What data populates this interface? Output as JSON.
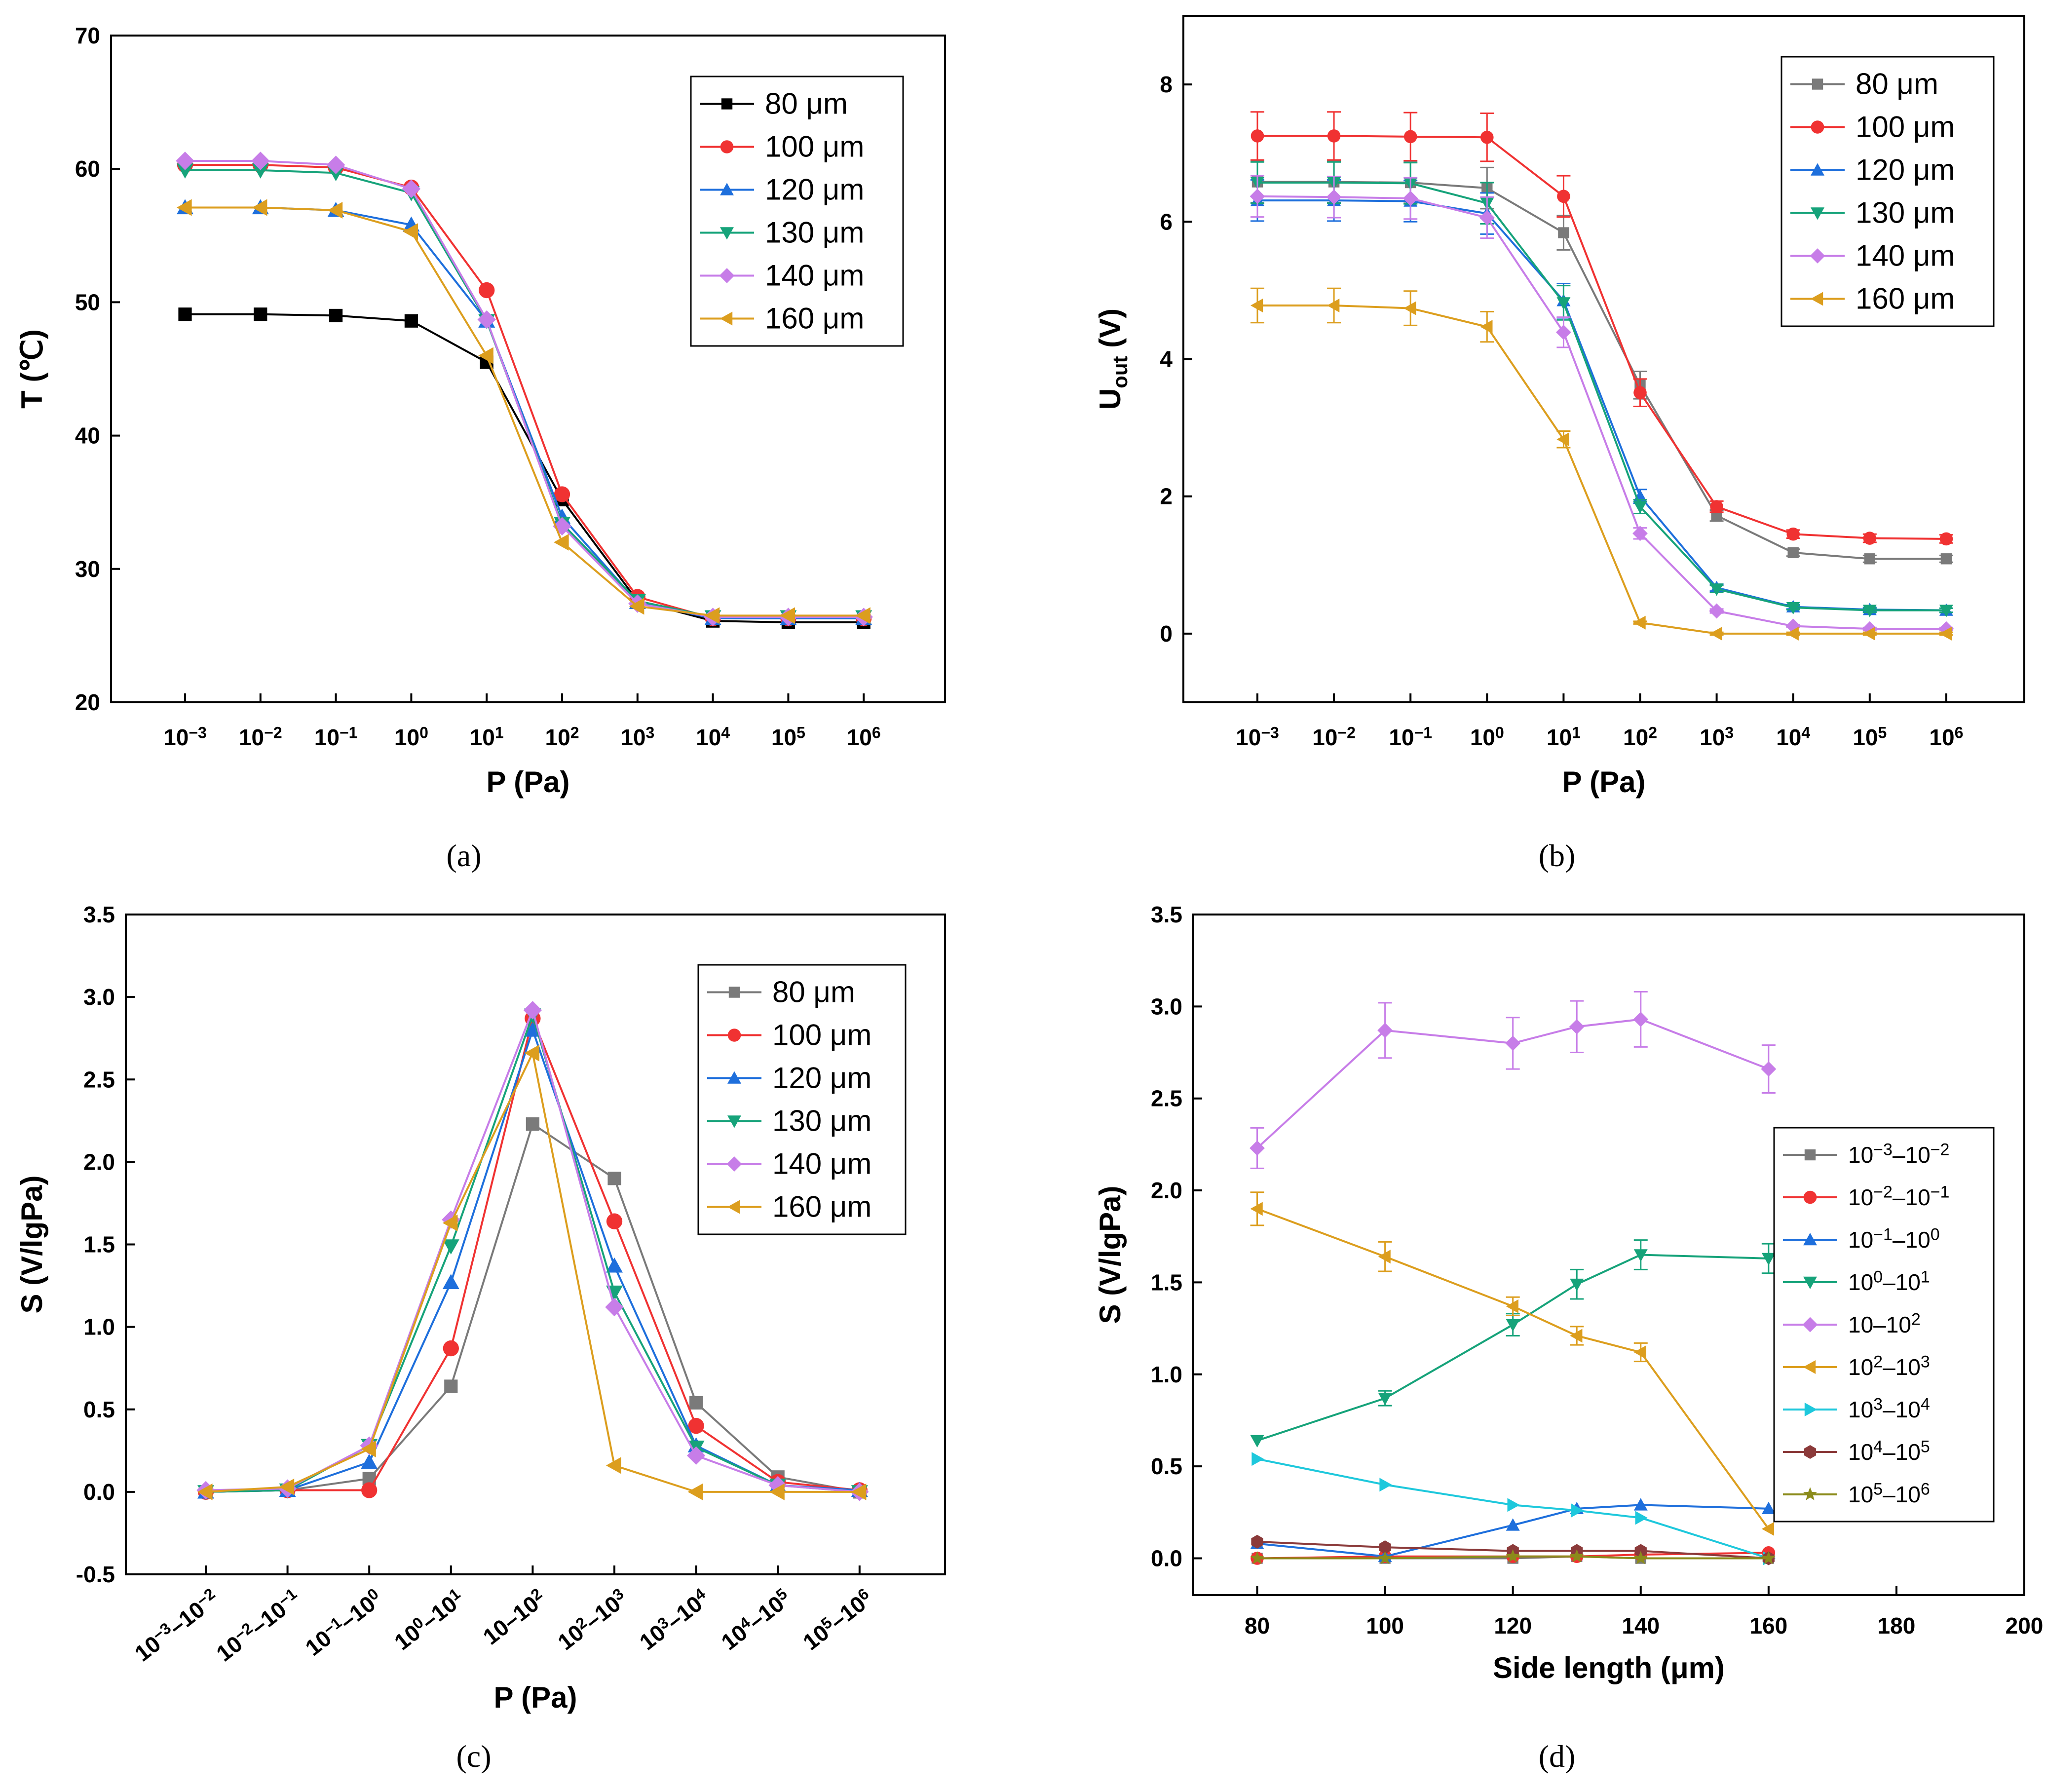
{
  "chart_data": [
    {
      "panel": "a",
      "type": "line",
      "caption": "(a)",
      "xlabel": "P (Pa)",
      "ylabel": "T (℃)",
      "ylim": [
        20,
        70
      ],
      "yticks": [
        20,
        30,
        40,
        50,
        60,
        70
      ],
      "categories": [
        "10^-3",
        "10^-2",
        "10^-1",
        "10^0",
        "10^1",
        "10^2",
        "10^3",
        "10^4",
        "10^5",
        "10^6"
      ],
      "series": [
        {
          "name": "80 μm",
          "color": "#000000",
          "marker": "square",
          "values": [
            49.1,
            49.1,
            49.0,
            48.6,
            45.5,
            35.2,
            27.6,
            26.1,
            26.0,
            26.0
          ]
        },
        {
          "name": "100 μm",
          "color": "#f03232",
          "marker": "circle",
          "values": [
            60.3,
            60.3,
            60.1,
            58.6,
            50.9,
            35.6,
            27.9,
            26.3,
            26.3,
            26.3
          ]
        },
        {
          "name": "120 μm",
          "color": "#1e6fdc",
          "marker": "triangle-up",
          "values": [
            57.1,
            57.1,
            56.9,
            55.8,
            48.6,
            33.9,
            27.5,
            26.3,
            26.3,
            26.3
          ]
        },
        {
          "name": "130 μm",
          "color": "#16a37a",
          "marker": "triangle-down",
          "values": [
            59.9,
            59.9,
            59.7,
            58.2,
            48.6,
            33.4,
            27.6,
            26.4,
            26.4,
            26.4
          ]
        },
        {
          "name": "140 μm",
          "color": "#c77de8",
          "marker": "diamond",
          "values": [
            60.6,
            60.6,
            60.3,
            58.5,
            48.7,
            33.2,
            27.4,
            26.4,
            26.4,
            26.4
          ]
        },
        {
          "name": "160 μm",
          "color": "#dc9e1e",
          "marker": "triangle-left",
          "values": [
            57.1,
            57.1,
            56.9,
            55.3,
            46.0,
            32.0,
            27.2,
            26.5,
            26.5,
            26.5
          ]
        }
      ]
    },
    {
      "panel": "b",
      "type": "line",
      "caption": "(b)",
      "xlabel": "P (Pa)",
      "ylabel": "Uout (V)",
      "ylabel_main": "U",
      "ylabel_sub": "out",
      "ylabel_tail": " (V)",
      "ylim": [
        -1,
        9
      ],
      "yticks": [
        0,
        2,
        4,
        6,
        8
      ],
      "categories": [
        "10^-3",
        "10^-2",
        "10^-1",
        "10^0",
        "10^1",
        "10^2",
        "10^3",
        "10^4",
        "10^5",
        "10^6"
      ],
      "series": [
        {
          "name": "80 μm",
          "color": "#7a7a7a",
          "marker": "square",
          "values": [
            6.58,
            6.58,
            6.57,
            6.49,
            5.84,
            3.62,
            1.72,
            1.18,
            1.09,
            1.09
          ],
          "errors": [
            0.3,
            0.3,
            0.3,
            0.3,
            0.25,
            0.2,
            0.08,
            0.05,
            0.05,
            0.05
          ]
        },
        {
          "name": "100 μm",
          "color": "#f03232",
          "marker": "circle",
          "values": [
            7.25,
            7.25,
            7.24,
            7.23,
            6.37,
            3.51,
            1.85,
            1.45,
            1.39,
            1.38
          ],
          "errors": [
            0.35,
            0.35,
            0.35,
            0.35,
            0.3,
            0.2,
            0.08,
            0.06,
            0.06,
            0.06
          ]
        },
        {
          "name": "120 μm",
          "color": "#1e6fdc",
          "marker": "triangle-up",
          "values": [
            6.31,
            6.31,
            6.3,
            6.12,
            4.85,
            2.0,
            0.67,
            0.39,
            0.35,
            0.34
          ],
          "errors": [
            0.3,
            0.3,
            0.3,
            0.3,
            0.25,
            0.1,
            0.05,
            0.03,
            0.03,
            0.03
          ]
        },
        {
          "name": "130 μm",
          "color": "#16a37a",
          "marker": "triangle-down",
          "values": [
            6.57,
            6.57,
            6.56,
            6.27,
            4.82,
            1.85,
            0.65,
            0.38,
            0.34,
            0.34
          ],
          "errors": [
            0.3,
            0.3,
            0.3,
            0.3,
            0.25,
            0.1,
            0.05,
            0.03,
            0.03,
            0.03
          ]
        },
        {
          "name": "140 μm",
          "color": "#c77de8",
          "marker": "diamond",
          "values": [
            6.37,
            6.36,
            6.34,
            6.06,
            4.39,
            1.46,
            0.33,
            0.11,
            0.07,
            0.07
          ],
          "errors": [
            0.3,
            0.3,
            0.3,
            0.3,
            0.22,
            0.08,
            0.03,
            0.02,
            0.02,
            0.02
          ]
        },
        {
          "name": "160 μm",
          "color": "#dc9e1e",
          "marker": "triangle-left",
          "values": [
            4.78,
            4.78,
            4.74,
            4.47,
            2.83,
            0.16,
            0.0,
            0.0,
            0.0,
            0.0
          ],
          "errors": [
            0.25,
            0.25,
            0.25,
            0.22,
            0.12,
            0.02,
            0.02,
            0.02,
            0.02,
            0.02
          ]
        }
      ]
    },
    {
      "panel": "c",
      "type": "line",
      "caption": "(c)",
      "xlabel": "P (Pa)",
      "ylabel": "S (V/lgPa)",
      "ylim": [
        -0.5,
        3.5
      ],
      "yticks": [
        -0.5,
        0.0,
        0.5,
        1.0,
        1.5,
        2.0,
        2.5,
        3.0,
        3.5
      ],
      "ytick_labels": [
        "-0.5",
        "0.0",
        "0.5",
        "1.0",
        "1.5",
        "2.0",
        "2.5",
        "3.0",
        "3.5"
      ],
      "categories": [
        "10^-3–10^-2",
        "10^-2–10^-1",
        "10^-1–10^0",
        "10^0–10^1",
        "10–10^2",
        "10^2–10^3",
        "10^3–10^4",
        "10^4–10^5",
        "10^5–10^6"
      ],
      "series": [
        {
          "name": "80 μm",
          "color": "#7a7a7a",
          "marker": "square",
          "values": [
            0.0,
            0.01,
            0.08,
            0.64,
            2.23,
            1.9,
            0.54,
            0.09,
            0.0
          ]
        },
        {
          "name": "100 μm",
          "color": "#f03232",
          "marker": "circle",
          "values": [
            0.0,
            0.01,
            0.01,
            0.87,
            2.87,
            1.64,
            0.4,
            0.06,
            0.01
          ]
        },
        {
          "name": "120 μm",
          "color": "#1e6fdc",
          "marker": "triangle-up",
          "values": [
            0.0,
            0.01,
            0.18,
            1.27,
            2.8,
            1.37,
            0.28,
            0.04,
            0.01
          ]
        },
        {
          "name": "130 μm",
          "color": "#16a37a",
          "marker": "triangle-down",
          "values": [
            0.0,
            0.01,
            0.28,
            1.49,
            2.89,
            1.21,
            0.27,
            0.04,
            0.0
          ]
        },
        {
          "name": "140 μm",
          "color": "#c77de8",
          "marker": "diamond",
          "values": [
            0.01,
            0.02,
            0.28,
            1.65,
            2.92,
            1.12,
            0.22,
            0.04,
            0.0
          ]
        },
        {
          "name": "160 μm",
          "color": "#dc9e1e",
          "marker": "triangle-left",
          "values": [
            0.0,
            0.03,
            0.26,
            1.63,
            2.66,
            0.16,
            0.0,
            0.0,
            0.0
          ]
        }
      ]
    },
    {
      "panel": "d",
      "type": "line",
      "caption": "(d)",
      "xlabel": "Side length (μm)",
      "ylabel": "S (V/lgPa)",
      "xlim": [
        70,
        200
      ],
      "xticks": [
        80,
        100,
        120,
        140,
        160,
        180,
        200
      ],
      "ylim": [
        -0.2,
        3.5
      ],
      "yticks": [
        0.0,
        0.5,
        1.0,
        1.5,
        2.0,
        2.5,
        3.0,
        3.5
      ],
      "ytick_labels": [
        "0.0",
        "0.5",
        "1.0",
        "1.5",
        "2.0",
        "2.5",
        "3.0",
        "3.5"
      ],
      "x": [
        80,
        100,
        120,
        130,
        140,
        160
      ],
      "series": [
        {
          "name": "10^-3–10^-2",
          "color": "#7a7a7a",
          "marker": "square",
          "values": [
            0.0,
            0.0,
            0.0,
            0.01,
            0.0,
            0.0
          ]
        },
        {
          "name": "10^-2–10^-1",
          "color": "#f03232",
          "marker": "circle",
          "values": [
            0.0,
            0.01,
            0.01,
            0.01,
            0.02,
            0.03
          ]
        },
        {
          "name": "10^-1–10^0",
          "color": "#1e6fdc",
          "marker": "triangle-up",
          "values": [
            0.08,
            0.01,
            0.18,
            0.27,
            0.29,
            0.27
          ]
        },
        {
          "name": "10^0–10^1",
          "color": "#16a37a",
          "marker": "triangle-down",
          "values": [
            0.64,
            0.87,
            1.27,
            1.49,
            1.65,
            1.63
          ],
          "errors": [
            0,
            0.04,
            0.06,
            0.08,
            0.08,
            0.08
          ]
        },
        {
          "name": "10–10^2",
          "color": "#c77de8",
          "marker": "diamond",
          "values": [
            2.23,
            2.87,
            2.8,
            2.89,
            2.93,
            2.66
          ],
          "errors": [
            0.11,
            0.15,
            0.14,
            0.14,
            0.15,
            0.13
          ]
        },
        {
          "name": "10^2–10^3",
          "color": "#dc9e1e",
          "marker": "triangle-left",
          "values": [
            1.9,
            1.64,
            1.37,
            1.21,
            1.12,
            0.16
          ],
          "errors": [
            0.09,
            0.08,
            0.05,
            0.05,
            0.05,
            0.0
          ]
        },
        {
          "name": "10^3–10^4",
          "color": "#1ec8dc",
          "marker": "triangle-right",
          "values": [
            0.54,
            0.4,
            0.29,
            0.26,
            0.22,
            0.0
          ]
        },
        {
          "name": "10^4–10^5",
          "color": "#8b3a3a",
          "marker": "hexagon",
          "values": [
            0.09,
            0.06,
            0.04,
            0.04,
            0.04,
            0.0
          ]
        },
        {
          "name": "10^5–10^6",
          "color": "#8b8b1a",
          "marker": "star",
          "values": [
            0.0,
            0.0,
            0.01,
            0.01,
            0.0,
            0.0
          ]
        }
      ]
    }
  ]
}
